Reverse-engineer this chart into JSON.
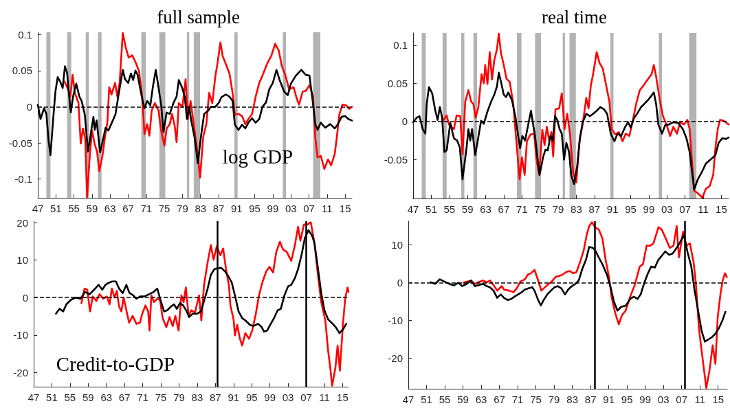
{
  "chart_data": [
    {
      "type": "line",
      "title": "full sample",
      "annotations": [
        "log GDP"
      ],
      "marker": "none",
      "grid": false,
      "xlim": [
        1947,
        2016.5
      ],
      "xticks": [
        {
          "value": 1947,
          "label": "47"
        },
        {
          "value": 1951,
          "label": "51"
        },
        {
          "value": 1955,
          "label": "55"
        },
        {
          "value": 1959,
          "label": "59"
        },
        {
          "value": 1963,
          "label": "63"
        },
        {
          "value": 1967,
          "label": "67"
        },
        {
          "value": 1971,
          "label": "71"
        },
        {
          "value": 1975,
          "label": "75"
        },
        {
          "value": 1979,
          "label": "79"
        },
        {
          "value": 1983,
          "label": "83"
        },
        {
          "value": 1987,
          "label": "87"
        },
        {
          "value": 1991,
          "label": "91"
        },
        {
          "value": 1995,
          "label": "95"
        },
        {
          "value": 1999,
          "label": "99"
        },
        {
          "value": 2003,
          "label": "03"
        },
        {
          "value": 2007,
          "label": "07"
        },
        {
          "value": 2011,
          "label": "11"
        },
        {
          "value": 2015,
          "label": "15"
        }
      ],
      "ylim": [
        -0.126,
        0.103
      ],
      "yticks": [
        -0.1,
        -0.05,
        0,
        0.05,
        0.1
      ],
      "bands": [
        {
          "axis": "x",
          "from": 1948.9,
          "to": 1949.8,
          "color": "#b3b3b3"
        },
        {
          "axis": "x",
          "from": 1953.5,
          "to": 1954.4,
          "color": "#b3b3b3"
        },
        {
          "axis": "x",
          "from": 1957.6,
          "to": 1958.3,
          "color": "#b3b3b3"
        },
        {
          "axis": "x",
          "from": 1960.3,
          "to": 1961.1,
          "color": "#b3b3b3"
        },
        {
          "axis": "x",
          "from": 1969.9,
          "to": 1970.9,
          "color": "#b3b3b3"
        },
        {
          "axis": "x",
          "from": 1973.9,
          "to": 1975.2,
          "color": "#b3b3b3"
        },
        {
          "axis": "x",
          "from": 1980.0,
          "to": 1980.5,
          "color": "#b3b3b3"
        },
        {
          "axis": "x",
          "from": 1981.5,
          "to": 1982.9,
          "color": "#b3b3b3"
        },
        {
          "axis": "x",
          "from": 1990.5,
          "to": 1991.2,
          "color": "#b3b3b3"
        },
        {
          "axis": "x",
          "from": 2001.2,
          "to": 2001.9,
          "color": "#b3b3b3"
        },
        {
          "axis": "x",
          "from": 2007.9,
          "to": 2009.5,
          "color": "#b3b3b3"
        }
      ],
      "ref_lines": [
        {
          "axis": "y",
          "value": 0,
          "color": "#000000",
          "line_style": "dashed"
        }
      ],
      "series": [
        {
          "color": "#ff0000",
          "x": [
            1952.9,
            1953.7,
            1954.2,
            1954.7,
            1955.2,
            1956.0,
            1956.5,
            1957.0,
            1957.5,
            1957.9,
            1958.5,
            1959.0,
            1959.6,
            1960.1,
            1960.6,
            1961.3,
            1961.9,
            1962.4,
            1962.8,
            1963.3,
            1964.1,
            1964.6,
            1965.1,
            1965.8,
            1966.5,
            1967.1,
            1967.9,
            1968.6,
            1969.4,
            1970.1,
            1970.6,
            1971.2,
            1971.7,
            1972.2,
            1972.9,
            1973.7,
            1974.2,
            1975.0,
            1975.5,
            1976.2,
            1976.7,
            1977.3,
            1977.7,
            1978.2,
            1979.0,
            1979.7,
            1980.2,
            1980.8,
            1981.5,
            1982.3,
            1982.9,
            1983.6,
            1984.3,
            1984.9,
            1985.6,
            1986.3,
            1986.8,
            1987.4,
            1987.9,
            1988.6,
            1989.4,
            1990.1,
            1990.6,
            1991.4,
            1992.2,
            1992.9,
            1993.7,
            1994.4,
            1995.2,
            1996.0,
            1996.7,
            1997.7,
            1998.7,
            1999.5,
            2000.3,
            2001.0,
            2001.8,
            2002.6,
            2003.6,
            2004.3,
            2004.8,
            2005.6,
            2006.3,
            2007.1,
            2007.9,
            2008.4,
            2008.9,
            2009.6,
            2010.4,
            2011.2,
            2011.9,
            2012.7,
            2013.2,
            2013.7,
            2014.4,
            2015.2,
            2015.9,
            2016.5
          ],
          "values": [
            0.035,
            0.024,
            0.014,
            0.044,
            0.019,
            0.005,
            -0.051,
            -0.03,
            -0.044,
            -0.125,
            -0.068,
            -0.033,
            -0.052,
            -0.062,
            -0.089,
            -0.068,
            -0.04,
            -0.021,
            0.027,
            0.017,
            0.033,
            0.014,
            0.033,
            0.102,
            0.081,
            0.068,
            0.071,
            0.062,
            0.049,
            0.014,
            -0.038,
            -0.024,
            -0.04,
            -0.005,
            0.005,
            -0.005,
            -0.03,
            -0.054,
            -0.03,
            -0.024,
            -0.01,
            -0.027,
            -0.049,
            0.005,
            0,
            0.038,
            -0.017,
            0.008,
            -0.024,
            -0.062,
            -0.098,
            -0.041,
            -0.024,
            0.019,
            0.005,
            0.043,
            0.062,
            0.089,
            0.07,
            0.059,
            0.046,
            0.019,
            -0.011,
            -0.01,
            -0.013,
            -0.024,
            -0.016,
            -0.01,
            0.014,
            0.033,
            0.043,
            0.059,
            0.071,
            0.087,
            0.078,
            0.056,
            0.043,
            0.024,
            0.027,
            0.011,
            0.003,
            0.021,
            0.022,
            0.03,
            0.014,
            -0.043,
            -0.07,
            -0.068,
            -0.086,
            -0.073,
            -0.081,
            -0.065,
            -0.04,
            -0.011,
            0.003,
            0.002,
            -0.003,
            0
          ]
        },
        {
          "color": "#000000",
          "x": [
            1947.0,
            1947.6,
            1948.4,
            1948.9,
            1949.4,
            1949.8,
            1950.4,
            1950.9,
            1951.4,
            1952.0,
            1952.5,
            1953.0,
            1953.5,
            1953.9,
            1954.3,
            1954.8,
            1955.5,
            1956.2,
            1956.7,
            1957.4,
            1958.1,
            1958.7,
            1959.3,
            1959.6,
            1960.0,
            1960.8,
            1961.3,
            1962.0,
            1962.6,
            1963.6,
            1964.2,
            1964.8,
            1965.8,
            1966.3,
            1967.0,
            1967.6,
            1968.1,
            1968.6,
            1969.1,
            1969.5,
            1970.1,
            1970.6,
            1971.2,
            1971.9,
            1972.4,
            1973.1,
            1973.7,
            1974.3,
            1974.8,
            1975.5,
            1976.2,
            1977.0,
            1977.7,
            1978.2,
            1979.0,
            1979.5,
            1980.0,
            1980.5,
            1981.0,
            1981.7,
            1982.4,
            1983.1,
            1983.8,
            1984.6,
            1985.3,
            1986.3,
            1987.1,
            1987.6,
            1988.6,
            1989.4,
            1990.1,
            1990.6,
            1991.4,
            1992.2,
            1992.9,
            1993.7,
            1994.4,
            1995.2,
            1996.0,
            1996.7,
            1997.5,
            1998.2,
            1999.0,
            1999.8,
            2000.5,
            2001.5,
            2002.3,
            2003.0,
            2004.1,
            2005.3,
            2006.3,
            2007.1,
            2007.7,
            2008.4,
            2008.9,
            2009.6,
            2010.6,
            2011.7,
            2012.7,
            2013.4,
            2014.2,
            2015.0,
            2015.7,
            2016.5
          ],
          "values": [
            0.003,
            -0.017,
            -0.002,
            -0.01,
            -0.048,
            -0.067,
            -0.017,
            0.021,
            0.041,
            0.034,
            0.026,
            0.056,
            0.046,
            0.017,
            -0.008,
            0.014,
            0.032,
            0.014,
            0.008,
            -0.011,
            -0.062,
            -0.038,
            -0.014,
            -0.032,
            -0.019,
            -0.063,
            -0.049,
            -0.029,
            -0.033,
            -0.019,
            -0.01,
            0.014,
            0.051,
            0.038,
            0.033,
            0.046,
            0.037,
            0.05,
            0.044,
            0.03,
            0.011,
            -0.002,
            0.008,
            0.002,
            0.025,
            0.051,
            0.027,
            0.002,
            -0.035,
            -0.008,
            -0.01,
            0.005,
            0.014,
            0.037,
            0.025,
            0.014,
            -0.017,
            0,
            -0.021,
            -0.043,
            -0.078,
            -0.041,
            -0.01,
            -0.006,
            0,
            0,
            0.006,
            0.013,
            0.017,
            0.014,
            0.008,
            -0.025,
            -0.032,
            -0.025,
            -0.03,
            -0.021,
            -0.016,
            -0.022,
            -0.017,
            0,
            0.006,
            0.024,
            0.033,
            0.051,
            0.037,
            0.021,
            0.016,
            0.032,
            0.043,
            0.051,
            0.044,
            0.043,
            0.014,
            -0.024,
            -0.032,
            -0.022,
            -0.029,
            -0.024,
            -0.03,
            -0.024,
            -0.014,
            -0.013,
            -0.017,
            -0.019
          ]
        }
      ]
    },
    {
      "type": "line",
      "title": "real time",
      "marker": "none",
      "grid": false,
      "xlim": [
        1947,
        2016.6
      ],
      "xticks": [
        {
          "value": 1947,
          "label": "47"
        },
        {
          "value": 1951,
          "label": "51"
        },
        {
          "value": 1955,
          "label": "55"
        },
        {
          "value": 1959,
          "label": "59"
        },
        {
          "value": 1963,
          "label": "63"
        },
        {
          "value": 1967,
          "label": "67"
        },
        {
          "value": 1971,
          "label": "71"
        },
        {
          "value": 1975,
          "label": "75"
        },
        {
          "value": 1979,
          "label": "79"
        },
        {
          "value": 1983,
          "label": "83"
        },
        {
          "value": 1987,
          "label": "87"
        },
        {
          "value": 1991,
          "label": "91"
        },
        {
          "value": 1995,
          "label": "95"
        },
        {
          "value": 1999,
          "label": "99"
        },
        {
          "value": 2003,
          "label": "03"
        },
        {
          "value": 2007,
          "label": "07"
        },
        {
          "value": 2011,
          "label": "11"
        },
        {
          "value": 2015,
          "label": "15"
        }
      ],
      "ylim": [
        -0.101,
        0.116
      ],
      "yticks": [
        -0.05,
        0,
        0.05,
        0.1
      ],
      "bands": [
        {
          "axis": "x",
          "from": 1948.9,
          "to": 1949.8,
          "color": "#b3b3b3"
        },
        {
          "axis": "x",
          "from": 1953.5,
          "to": 1954.4,
          "color": "#b3b3b3"
        },
        {
          "axis": "x",
          "from": 1957.6,
          "to": 1958.3,
          "color": "#b3b3b3"
        },
        {
          "axis": "x",
          "from": 1960.3,
          "to": 1961.1,
          "color": "#b3b3b3"
        },
        {
          "axis": "x",
          "from": 1969.9,
          "to": 1970.9,
          "color": "#b3b3b3"
        },
        {
          "axis": "x",
          "from": 1973.9,
          "to": 1975.2,
          "color": "#b3b3b3"
        },
        {
          "axis": "x",
          "from": 1980.0,
          "to": 1980.5,
          "color": "#b3b3b3"
        },
        {
          "axis": "x",
          "from": 1981.5,
          "to": 1982.9,
          "color": "#b3b3b3"
        },
        {
          "axis": "x",
          "from": 1990.5,
          "to": 1991.2,
          "color": "#b3b3b3"
        },
        {
          "axis": "x",
          "from": 2001.2,
          "to": 2001.9,
          "color": "#b3b3b3"
        },
        {
          "axis": "x",
          "from": 2007.9,
          "to": 2009.5,
          "color": "#b3b3b3"
        }
      ],
      "ref_lines": [
        {
          "axis": "y",
          "value": 0,
          "color": "#000000",
          "line_style": "dashed"
        }
      ],
      "series": [
        {
          "color": "#ff0000",
          "x": [
            1953.4,
            1954.4,
            1954.9,
            1956.0,
            1956.6,
            1957.4,
            1957.9,
            1958.5,
            1959.2,
            1959.8,
            1960.3,
            1960.8,
            1961.4,
            1962.1,
            1962.6,
            1962.9,
            1963.4,
            1963.9,
            1964.4,
            1964.9,
            1965.5,
            1965.9,
            1966.4,
            1967.0,
            1967.6,
            1968.3,
            1969.1,
            1969.8,
            1970.5,
            1971.0,
            1971.6,
            1972.1,
            1972.9,
            1973.7,
            1974.2,
            1974.8,
            1975.5,
            1976.0,
            1976.5,
            1977.0,
            1977.5,
            1977.9,
            1978.4,
            1979.2,
            1979.8,
            1980.4,
            1981.0,
            1981.6,
            1982.3,
            1983.0,
            1983.7,
            1984.4,
            1985.2,
            1985.7,
            1986.2,
            1986.7,
            1987.5,
            1988.1,
            1988.8,
            1989.6,
            1990.3,
            1990.8,
            1991.6,
            1992.4,
            1993.2,
            1993.9,
            1994.7,
            1995.5,
            1996.2,
            1997.0,
            1997.8,
            1998.5,
            1999.6,
            2000.1,
            2000.6,
            2001.4,
            2002.1,
            2002.9,
            2003.7,
            2004.4,
            2005.2,
            2005.9,
            2006.7,
            2007.5,
            2008.0,
            2009.0,
            2009.8,
            2010.8,
            2011.6,
            2012.4,
            2013.2,
            2013.7,
            2014.2,
            2014.7,
            2015.5,
            2016.6
          ],
          "values": [
            -0.001,
            0.008,
            -0.004,
            -0.01,
            0.008,
            0.007,
            -0.043,
            0.026,
            0.041,
            0.026,
            0.023,
            0.005,
            0.019,
            0.062,
            0.05,
            0.074,
            0.049,
            0.091,
            0.055,
            0.08,
            0.095,
            0.115,
            0.089,
            0.074,
            0.056,
            0.052,
            0.023,
            -0.028,
            -0.076,
            -0.047,
            -0.07,
            -0.026,
            -0.017,
            -0.016,
            -0.049,
            -0.07,
            -0.011,
            -0.031,
            -0.007,
            -0.025,
            -0.014,
            -0.046,
            0.016,
            0.017,
            0.037,
            -0.01,
            0.01,
            -0.016,
            -0.067,
            -0.08,
            -0.025,
            -0.004,
            0.031,
            0.017,
            0.047,
            0.062,
            0.091,
            0.077,
            0.07,
            0.047,
            0.026,
            -0.01,
            -0.017,
            -0.014,
            -0.026,
            -0.016,
            -0.019,
            0.002,
            0.023,
            0.041,
            0.047,
            0.053,
            0.062,
            0.074,
            0.059,
            0.029,
            0.007,
            -0.004,
            -0.019,
            -0.007,
            -0.016,
            -0.001,
            -0.004,
            0.002,
            -0.01,
            -0.091,
            -0.094,
            -0.1,
            -0.088,
            -0.085,
            -0.07,
            -0.034,
            -0.01,
            0.002,
            0.001,
            -0.004
          ]
        },
        {
          "color": "#000000",
          "x": [
            1947.0,
            1947.8,
            1948.4,
            1949.1,
            1949.7,
            1950.0,
            1950.5,
            1951.2,
            1951.9,
            1952.4,
            1952.9,
            1953.4,
            1953.9,
            1954.4,
            1955.2,
            1956.0,
            1956.7,
            1957.3,
            1957.9,
            1958.8,
            1959.2,
            1959.6,
            1960.0,
            1960.7,
            1961.4,
            1962.0,
            1962.6,
            1963.4,
            1964.2,
            1964.9,
            1965.5,
            1965.9,
            1966.5,
            1967.0,
            1967.5,
            1968.0,
            1968.8,
            1969.6,
            1970.1,
            1970.6,
            1971.1,
            1971.7,
            1972.4,
            1973.0,
            1973.4,
            1973.9,
            1974.4,
            1974.9,
            1975.7,
            1976.2,
            1976.7,
            1977.3,
            1977.8,
            1978.3,
            1978.8,
            1979.3,
            1979.8,
            1980.3,
            1980.8,
            1981.4,
            1981.9,
            1982.5,
            1983.2,
            1983.8,
            1984.4,
            1985.2,
            1986.0,
            1986.7,
            1987.5,
            1988.3,
            1989.1,
            1989.8,
            1990.6,
            1991.4,
            1992.1,
            1992.9,
            1993.7,
            1994.4,
            1995.0,
            1995.7,
            1996.5,
            1997.3,
            1998.0,
            1998.8,
            1999.6,
            2000.1,
            2000.6,
            2001.1,
            2001.9,
            2002.6,
            2003.4,
            2004.4,
            2005.5,
            2006.5,
            2007.3,
            2008.0,
            2009.0,
            2009.8,
            2010.8,
            2011.6,
            2012.6,
            2013.7,
            2014.4,
            2015.2,
            2016.0,
            2016.6
          ],
          "values": [
            -0.001,
            0.005,
            0.007,
            -0.01,
            -0.016,
            0.023,
            0.045,
            0.037,
            0.014,
            0.002,
            0.019,
            0.005,
            -0.04,
            -0.038,
            -0.002,
            -0.022,
            -0.025,
            -0.034,
            -0.076,
            -0.034,
            -0.01,
            -0.025,
            -0.01,
            -0.044,
            -0.02,
            0.001,
            -0.003,
            0.013,
            0.026,
            0.035,
            0.046,
            0.064,
            0.049,
            0.035,
            0.032,
            0.038,
            0.028,
            0.005,
            -0.016,
            -0.035,
            -0.019,
            -0.025,
            -0.004,
            0.014,
            -0.001,
            -0.019,
            -0.046,
            -0.07,
            -0.046,
            -0.037,
            -0.038,
            -0.019,
            -0.025,
            0.007,
            0.002,
            -0.01,
            -0.016,
            -0.05,
            -0.028,
            -0.04,
            -0.071,
            -0.082,
            -0.058,
            -0.022,
            -0.001,
            0.01,
            0.007,
            0.01,
            0.014,
            0.019,
            0.016,
            0.01,
            -0.016,
            -0.026,
            -0.016,
            -0.019,
            -0.008,
            -0.001,
            -0.008,
            0.004,
            0.011,
            0.019,
            0.023,
            0.028,
            0.034,
            0.038,
            0.023,
            -0.004,
            -0.016,
            -0.005,
            -0.004,
            -0.001,
            -0.002,
            -0.01,
            -0.022,
            -0.04,
            -0.089,
            -0.076,
            -0.065,
            -0.055,
            -0.05,
            -0.044,
            -0.028,
            -0.022,
            -0.023,
            -0.021
          ]
        }
      ]
    },
    {
      "type": "line",
      "annotations": [
        "Credit-to-GDP"
      ],
      "marker": "none",
      "grid": false,
      "xlim": [
        1947,
        2016.3
      ],
      "xticks": [
        {
          "value": 1947,
          "label": "47"
        },
        {
          "value": 1951,
          "label": "51"
        },
        {
          "value": 1955,
          "label": "55"
        },
        {
          "value": 1959,
          "label": "59"
        },
        {
          "value": 1963,
          "label": "63"
        },
        {
          "value": 1967,
          "label": "67"
        },
        {
          "value": 1971,
          "label": "71"
        },
        {
          "value": 1975,
          "label": "75"
        },
        {
          "value": 1979,
          "label": "79"
        },
        {
          "value": 1983,
          "label": "83"
        },
        {
          "value": 1987,
          "label": "87"
        },
        {
          "value": 1991,
          "label": "91"
        },
        {
          "value": 1995,
          "label": "95"
        },
        {
          "value": 1999,
          "label": "99"
        },
        {
          "value": 2003,
          "label": "03"
        },
        {
          "value": 2007,
          "label": "07"
        },
        {
          "value": 2011,
          "label": "11"
        },
        {
          "value": 2015,
          "label": "15"
        }
      ],
      "ylim": [
        -23.8,
        20.4
      ],
      "yticks": [
        -20,
        -10,
        0,
        10,
        20
      ],
      "ref_lines": [
        {
          "axis": "y",
          "value": 0,
          "color": "#000000",
          "line_style": "dashed"
        },
        {
          "axis": "x",
          "value": 1987.5,
          "color": "#000000",
          "line_style": "solid"
        },
        {
          "axis": "x",
          "value": 2007.0,
          "color": "#000000",
          "line_style": "solid"
        }
      ],
      "series": [
        {
          "color": "#ff0000",
          "x": [
            1957.5,
            1958.2,
            1958.8,
            1959.4,
            1960.0,
            1960.8,
            1961.5,
            1962.3,
            1963.1,
            1963.7,
            1964.2,
            1964.8,
            1965.3,
            1965.8,
            1966.3,
            1966.8,
            1967.4,
            1968.0,
            1968.8,
            1969.6,
            1970.4,
            1970.9,
            1971.6,
            1972.2,
            1972.5,
            1972.9,
            1973.5,
            1974.2,
            1974.8,
            1975.4,
            1976.2,
            1976.9,
            1977.6,
            1978.2,
            1978.9,
            1979.5,
            1980.0,
            1980.5,
            1981.1,
            1981.7,
            1982.5,
            1983.4,
            1983.9,
            1984.5,
            1985.3,
            1986.0,
            1986.6,
            1987.3,
            1988.1,
            1988.7,
            1989.3,
            1990.0,
            1990.3,
            1991.0,
            1991.3,
            1991.8,
            1992.4,
            1992.9,
            1993.6,
            1994.4,
            1995.1,
            1995.9,
            1996.6,
            1997.4,
            1998.2,
            1998.9,
            1999.7,
            2000.4,
            2001.2,
            2001.9,
            2002.7,
            2003.7,
            2004.5,
            2005.2,
            2005.7,
            2006.5,
            2007.3,
            2008.0,
            2008.8,
            2009.5,
            2010.3,
            2011.2,
            2011.8,
            2012.3,
            2012.7,
            2013.4,
            2013.9,
            2014.4,
            2015.1,
            2015.6,
            2016.1,
            2016.3
          ],
          "values": [
            -1.5,
            2.4,
            2.1,
            -3.7,
            0.3,
            -0.9,
            0.9,
            -0.3,
            0.3,
            -1.8,
            2.4,
            0,
            1.8,
            -2.4,
            -3.7,
            0,
            -3.4,
            -6.7,
            -4.9,
            -7.0,
            -6.7,
            -4.3,
            -2.1,
            -3.7,
            -8.8,
            0.6,
            -1.2,
            -0.3,
            -0.6,
            -5.5,
            -7.9,
            -5.2,
            -7.6,
            -4.9,
            -8.8,
            0.6,
            -1.2,
            2.7,
            -4.9,
            -3.4,
            -4.0,
            0.6,
            -6.1,
            3.4,
            9.5,
            14.0,
            10.1,
            13.7,
            11.3,
            13.1,
            7.9,
            3.0,
            -2.1,
            -5.8,
            -10.1,
            -7.3,
            -11.0,
            -12.8,
            -9.5,
            -11.0,
            -8.8,
            -4.3,
            0.6,
            4.3,
            7.0,
            8.2,
            6.7,
            12.2,
            14.9,
            12.8,
            12.2,
            9.8,
            14.0,
            18.9,
            15.2,
            19.5,
            19.5,
            20.1,
            14.6,
            6.7,
            -1.2,
            -6.1,
            -14.0,
            -18.9,
            -23.5,
            -18.9,
            -12.8,
            -19.5,
            -6.7,
            0,
            2.7,
            1.5
          ]
        },
        {
          "color": "#000000",
          "x": [
            1951.9,
            1952.7,
            1953.5,
            1954.2,
            1955.2,
            1956.2,
            1957.3,
            1958.3,
            1959.3,
            1960.3,
            1961.3,
            1962.1,
            1962.8,
            1963.6,
            1964.3,
            1965.1,
            1965.8,
            1966.6,
            1967.4,
            1968.1,
            1968.9,
            1969.6,
            1970.4,
            1971.4,
            1972.4,
            1973.4,
            1974.2,
            1974.9,
            1975.7,
            1976.4,
            1977.2,
            1977.9,
            1978.5,
            1979.2,
            1979.9,
            1980.7,
            1981.2,
            1982.0,
            1983.0,
            1983.8,
            1984.5,
            1985.3,
            1986.0,
            1986.8,
            1987.6,
            1988.3,
            1989.1,
            1989.8,
            1990.6,
            1991.3,
            1992.1,
            1992.9,
            1993.6,
            1994.6,
            1995.4,
            1996.4,
            1997.2,
            1997.7,
            1998.4,
            1999.2,
            1999.9,
            2000.7,
            2001.4,
            2002.2,
            2003.0,
            2003.7,
            2004.5,
            2005.2,
            2006.0,
            2006.7,
            2007.5,
            2008.3,
            2008.8,
            2009.5,
            2010.3,
            2011.0,
            2011.8,
            2012.8,
            2013.5,
            2014.3,
            2015.1,
            2015.8
          ],
          "values": [
            -4.3,
            -3.0,
            -3.7,
            -1.8,
            -0.6,
            0,
            -0.3,
            1.5,
            0.9,
            2.1,
            3.4,
            2.1,
            3.4,
            4.0,
            4.3,
            4.3,
            2.4,
            1.2,
            3.4,
            1.2,
            0.6,
            -0.3,
            0.3,
            0.3,
            0.9,
            1.5,
            2.4,
            -0.6,
            -3.7,
            -3.4,
            -2.4,
            -1.8,
            -3.0,
            -1.5,
            -2.1,
            -3.7,
            -5.2,
            -4.3,
            -4.3,
            -3.7,
            -0.9,
            2.4,
            6.1,
            7.6,
            7.9,
            7.9,
            7.0,
            5.8,
            4.0,
            0.6,
            -3.7,
            -5.5,
            -6.1,
            -7.3,
            -7.6,
            -7.0,
            -7.9,
            -9.1,
            -8.8,
            -7.0,
            -5.5,
            -3.4,
            -3.0,
            0.6,
            3.0,
            3.4,
            5.2,
            7.6,
            11.6,
            15.9,
            18.0,
            16.5,
            14.6,
            8.5,
            1.2,
            -3.4,
            -5.8,
            -7.0,
            -7.9,
            -9.5,
            -8.5,
            -7.0
          ]
        }
      ]
    },
    {
      "type": "line",
      "marker": "none",
      "grid": false,
      "xlim": [
        1947,
        2017
      ],
      "xticks": [
        {
          "value": 1947,
          "label": "47"
        },
        {
          "value": 1951,
          "label": "51"
        },
        {
          "value": 1955,
          "label": "55"
        },
        {
          "value": 1959,
          "label": "59"
        },
        {
          "value": 1963,
          "label": "63"
        },
        {
          "value": 1967,
          "label": "67"
        },
        {
          "value": 1971,
          "label": "71"
        },
        {
          "value": 1975,
          "label": "75"
        },
        {
          "value": 1979,
          "label": "79"
        },
        {
          "value": 1983,
          "label": "83"
        },
        {
          "value": 1987,
          "label": "87"
        },
        {
          "value": 1991,
          "label": "91"
        },
        {
          "value": 1995,
          "label": "95"
        },
        {
          "value": 1999,
          "label": "99"
        },
        {
          "value": 2003,
          "label": "03"
        },
        {
          "value": 2007,
          "label": "07"
        },
        {
          "value": 2011,
          "label": "11"
        },
        {
          "value": 2015,
          "label": "15"
        }
      ],
      "ylim": [
        -28.1,
        16.3
      ],
      "yticks": [
        -20,
        -10,
        0,
        10
      ],
      "ref_lines": [
        {
          "axis": "y",
          "value": 0,
          "color": "#000000",
          "line_style": "dashed"
        },
        {
          "axis": "x",
          "value": 1987.9,
          "color": "#000000",
          "line_style": "solid"
        },
        {
          "axis": "x",
          "value": 2007.7,
          "color": "#000000",
          "line_style": "solid"
        }
      ],
      "series": [
        {
          "color": "#ff0000",
          "x": [
            1959.1,
            1959.8,
            1960.8,
            1961.6,
            1962.4,
            1963.4,
            1964.2,
            1964.9,
            1965.7,
            1966.5,
            1967.5,
            1968.0,
            1969.1,
            1970.1,
            1970.8,
            1971.6,
            1972.6,
            1973.2,
            1973.9,
            1974.7,
            1975.5,
            1976.2,
            1977.0,
            1977.8,
            1978.5,
            1979.3,
            1980.1,
            1980.8,
            1981.6,
            1982.4,
            1983.2,
            1983.9,
            1984.7,
            1985.5,
            1986.2,
            1986.7,
            1987.3,
            1988.0,
            1988.8,
            1989.6,
            1990.3,
            1991.1,
            1991.6,
            1992.4,
            1993.2,
            1993.9,
            1994.7,
            1995.7,
            1996.7,
            1997.8,
            1998.5,
            1999.3,
            2000.1,
            2000.8,
            2001.9,
            2002.6,
            2003.4,
            2004.4,
            2005.2,
            2005.9,
            2006.4,
            2007.3,
            2008.0,
            2008.8,
            2009.6,
            2010.1,
            2010.8,
            2011.6,
            2012.4,
            2013.1,
            2013.8,
            2014.4,
            2014.9,
            2015.5,
            2016.0,
            2016.5,
            2016.9
          ],
          "values": [
            0,
            0.3,
            0.5,
            -0.3,
            0.1,
            0.6,
            0.1,
            0.6,
            -0.6,
            -2.1,
            -0.9,
            -1.8,
            -2.1,
            -2.5,
            -1.5,
            0.3,
            0.9,
            2.1,
            2.5,
            3.4,
            0.6,
            -2.1,
            -1.2,
            -0.3,
            0.3,
            1.5,
            1.8,
            2.1,
            2.8,
            3.1,
            2.5,
            2.8,
            5.5,
            8.6,
            12.9,
            15.0,
            16.0,
            14.7,
            14.1,
            11.7,
            6.1,
            1.2,
            -3.7,
            -8.0,
            -11.0,
            -8.6,
            -7.4,
            -3.7,
            -0.6,
            4.3,
            4.9,
            9.8,
            9.8,
            10.4,
            14.7,
            14.1,
            12.0,
            9.2,
            9.8,
            15.0,
            6.7,
            13.5,
            9.8,
            10.4,
            5.5,
            0,
            -12.3,
            -20.2,
            -27.9,
            -23.3,
            -16.6,
            -21.5,
            -9.2,
            -3.1,
            0.6,
            2.5,
            1.5
          ]
        },
        {
          "color": "#000000",
          "x": [
            1951.9,
            1952.9,
            1953.9,
            1954.9,
            1956.0,
            1957.0,
            1958.0,
            1958.8,
            1959.8,
            1960.8,
            1961.6,
            1962.6,
            1963.4,
            1964.2,
            1964.9,
            1965.7,
            1966.5,
            1967.3,
            1968.0,
            1968.8,
            1969.6,
            1970.3,
            1971.1,
            1971.9,
            1972.6,
            1973.4,
            1974.2,
            1974.7,
            1975.5,
            1976.1,
            1976.7,
            1977.5,
            1978.3,
            1979.1,
            1979.8,
            1980.6,
            1981.4,
            1982.1,
            1982.9,
            1983.7,
            1984.4,
            1985.2,
            1986.0,
            1986.7,
            1987.5,
            1988.0,
            1988.8,
            1989.6,
            1990.6,
            1991.4,
            1992.1,
            1992.9,
            1993.7,
            1994.7,
            1995.7,
            1996.5,
            1997.3,
            1998.0,
            1998.8,
            1999.6,
            2000.3,
            2001.1,
            2001.9,
            2002.6,
            2003.4,
            2004.2,
            2005.0,
            2005.7,
            2006.5,
            2007.5,
            2008.3,
            2009.1,
            2009.8,
            2010.6,
            2011.4,
            2012.1,
            2012.9,
            2013.7,
            2014.4,
            2015.2,
            2016.0,
            2016.6
          ],
          "values": [
            0.1,
            -0.3,
            0.9,
            0.3,
            -0.3,
            -0.7,
            0,
            -0.9,
            -0.3,
            0.6,
            -0.9,
            -0.6,
            -0.3,
            -0.9,
            -1.2,
            -2.1,
            -4.0,
            -3.1,
            -4.0,
            -4.6,
            -4.3,
            -3.7,
            -3.1,
            -2.5,
            -1.8,
            -1.5,
            -1.2,
            -2.1,
            -4.6,
            -6.0,
            -4.6,
            -3.1,
            -2.1,
            -1.2,
            -0.9,
            -1.5,
            -3.1,
            -1.8,
            -0.9,
            -0.3,
            0.6,
            3.7,
            6.1,
            9.5,
            9.2,
            8.6,
            6.7,
            4.9,
            2.1,
            -1.2,
            -4.9,
            -7.4,
            -6.4,
            -6.1,
            -4.3,
            -3.7,
            -4.3,
            -3.1,
            0,
            2.5,
            4.3,
            4.0,
            6.1,
            7.1,
            8.3,
            7.4,
            7.7,
            8.9,
            10.4,
            12.6,
            8.0,
            4.3,
            -1.8,
            -7.4,
            -12.9,
            -15.6,
            -15.0,
            -14.4,
            -13.5,
            -12.0,
            -9.8,
            -7.7
          ]
        }
      ]
    }
  ]
}
